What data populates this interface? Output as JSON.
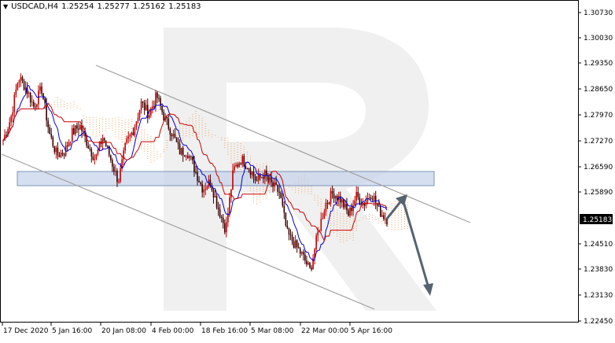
{
  "header": {
    "arrow_icon": "triangle-down-icon",
    "symbol": "USDCAD,H4",
    "open": "1.25254",
    "high": "1.25277",
    "low": "1.25162",
    "close": "1.25183"
  },
  "price_axis": {
    "ticks": [
      "1.30730",
      "1.30030",
      "1.29350",
      "1.28650",
      "1.27970",
      "1.27270",
      "1.26590",
      "1.25890",
      "1.25183",
      "1.24510",
      "1.23830",
      "1.23130",
      "1.22450"
    ],
    "current_price": "1.25183",
    "current_price_color": "#000000"
  },
  "time_axis": {
    "labels": [
      "17 Dec 2020",
      "5 Jan 16:00",
      "20 Jan 08:00",
      "4 Feb 00:00",
      "18 Feb 16:00",
      "5 Mar 08:00",
      "22 Mar 00:00",
      "5 Apr 16:00"
    ]
  },
  "colors": {
    "bull_candle": "#c00000",
    "bear_candle": "#3a0000",
    "tenkan": "#0000cc",
    "kijun": "#c00000",
    "cloud": "#e8903a",
    "channel": "#a0a0a0",
    "zone_fill": "#b8c8e0",
    "forecast_arrow": "#556370",
    "watermark": "#eeeeee"
  },
  "watermark": {
    "letter": "R"
  },
  "chart_data": {
    "type": "candlestick",
    "instrument": "USDCAD",
    "timeframe": "H4",
    "ylim": [
      1.2245,
      1.3105
    ],
    "x_labels": [
      "17 Dec 2020",
      "5 Jan 16:00",
      "20 Jan 08:00",
      "4 Feb 00:00",
      "18 Feb 16:00",
      "5 Mar 08:00",
      "22 Mar 00:00",
      "5 Apr 16:00"
    ],
    "close_path": [
      1.273,
      1.279,
      1.29,
      1.287,
      1.282,
      1.287,
      1.275,
      1.269,
      1.27,
      1.275,
      1.277,
      1.272,
      1.268,
      1.274,
      1.268,
      1.262,
      1.272,
      1.276,
      1.283,
      1.28,
      1.285,
      1.279,
      1.275,
      1.27,
      1.27,
      1.265,
      1.26,
      1.262,
      1.255,
      1.249,
      1.265,
      1.268,
      1.266,
      1.262,
      1.264,
      1.261,
      1.259,
      1.248,
      1.245,
      1.242,
      1.238,
      1.248,
      1.256,
      1.259,
      1.257,
      1.253,
      1.258,
      1.256,
      1.259,
      1.254,
      1.2518
    ],
    "support_resistance_zone": [
      1.2595,
      1.262
    ],
    "channel": {
      "upper": [
        [
          "20 Jan 08:00",
          1.295
        ],
        [
          "5 Apr 16:00",
          1.259
        ]
      ],
      "lower": [
        [
          "17 Dec 2020",
          1.27
        ],
        [
          "5 Apr 16:00",
          1.224
        ]
      ]
    },
    "forecast": [
      1.2518,
      1.258,
      1.23
    ]
  }
}
